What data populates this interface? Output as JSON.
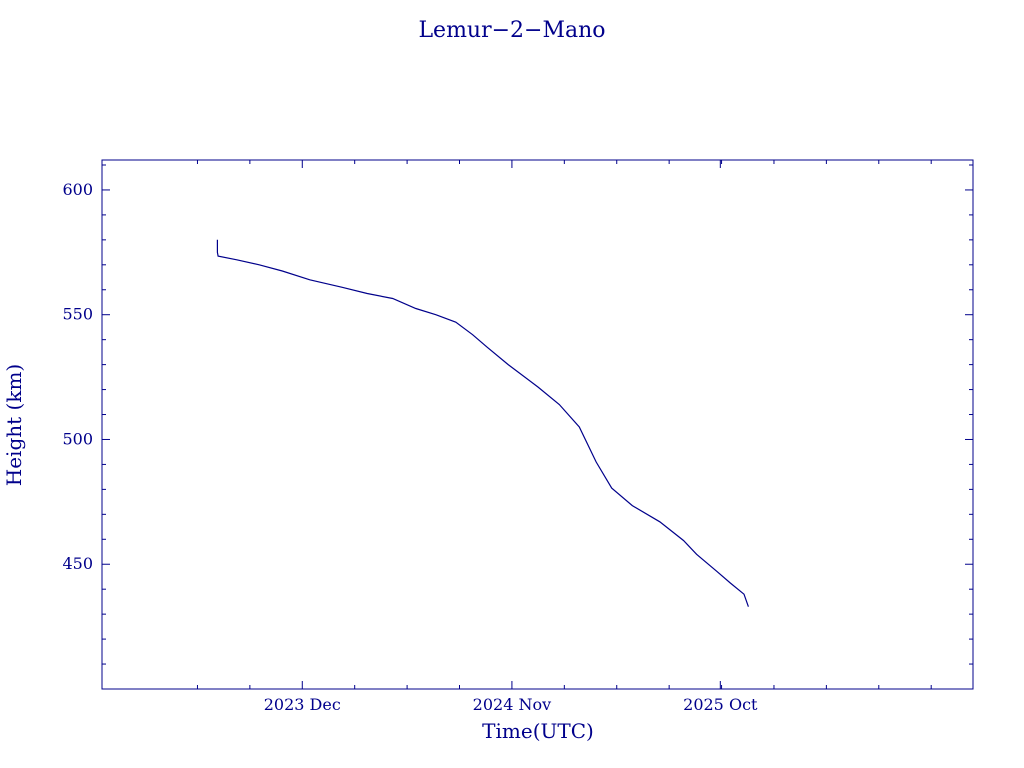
{
  "chart_data": {
    "type": "line",
    "title": "Lemur−2−Mano",
    "xlabel": "Time(UTC)",
    "ylabel": "Height (km)",
    "xlim": [
      "2023-01-14",
      "2026-11-10"
    ],
    "ylim": [
      400,
      612
    ],
    "x_ticks": [
      {
        "date": "2023-12-01",
        "label": "2023 Dec"
      },
      {
        "date": "2024-11-01",
        "label": "2024 Nov"
      },
      {
        "date": "2025-10-01",
        "label": "2025 Oct"
      }
    ],
    "y_ticks": [
      {
        "value": 450,
        "label": "450"
      },
      {
        "value": 500,
        "label": "500"
      },
      {
        "value": 550,
        "label": "550"
      },
      {
        "value": 600,
        "label": "600"
      }
    ],
    "grid": false,
    "color": "#00008b",
    "series": [
      {
        "x": [
          "2023-07-18",
          "2023-07-18",
          "2023-07-19",
          "2023-08-18",
          "2023-09-23",
          "2023-10-30",
          "2023-12-13",
          "2024-02-03",
          "2024-03-14",
          "2024-04-24",
          "2024-05-31",
          "2024-07-02",
          "2024-08-03",
          "2024-08-30",
          "2024-09-22",
          "2024-10-26",
          "2024-12-13",
          "2025-01-16",
          "2025-02-17",
          "2025-03-16",
          "2025-04-10",
          "2025-05-13",
          "2025-06-26",
          "2025-08-03",
          "2025-08-24",
          "2025-09-26",
          "2025-10-17",
          "2025-11-08",
          "2025-11-15"
        ],
        "y": [
          580,
          575,
          573.5,
          572,
          570,
          567.5,
          564,
          561,
          558.5,
          556.5,
          552.5,
          550,
          547,
          542,
          537,
          530,
          521,
          514,
          505,
          491,
          480.5,
          473.5,
          467,
          459.5,
          454,
          447,
          442.5,
          438,
          433
        ]
      }
    ]
  }
}
